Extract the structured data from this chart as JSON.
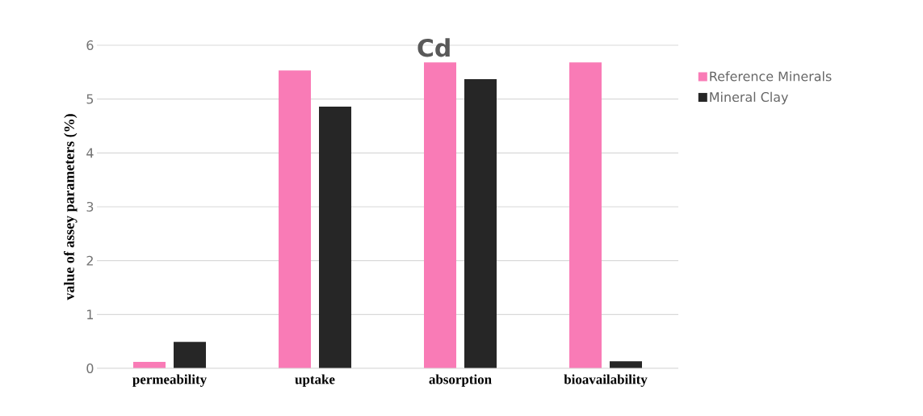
{
  "chart_data": {
    "type": "bar",
    "title": "Cd",
    "ylabel": "value of assey parameters (%)",
    "categories": [
      "permeability",
      "uptake",
      "absorption",
      "bioavailability"
    ],
    "series": [
      {
        "name": "Reference Minerals",
        "color": "#f97bb6",
        "values": [
          0.12,
          5.53,
          5.68,
          5.68
        ]
      },
      {
        "name": "Mineral Clay",
        "color": "#262626",
        "values": [
          0.49,
          4.86,
          5.37,
          0.13
        ]
      }
    ],
    "ylim": [
      0,
      6
    ],
    "yticks": [
      0,
      1,
      2,
      3,
      4,
      5,
      6
    ],
    "grid": "y",
    "legend": "right"
  }
}
